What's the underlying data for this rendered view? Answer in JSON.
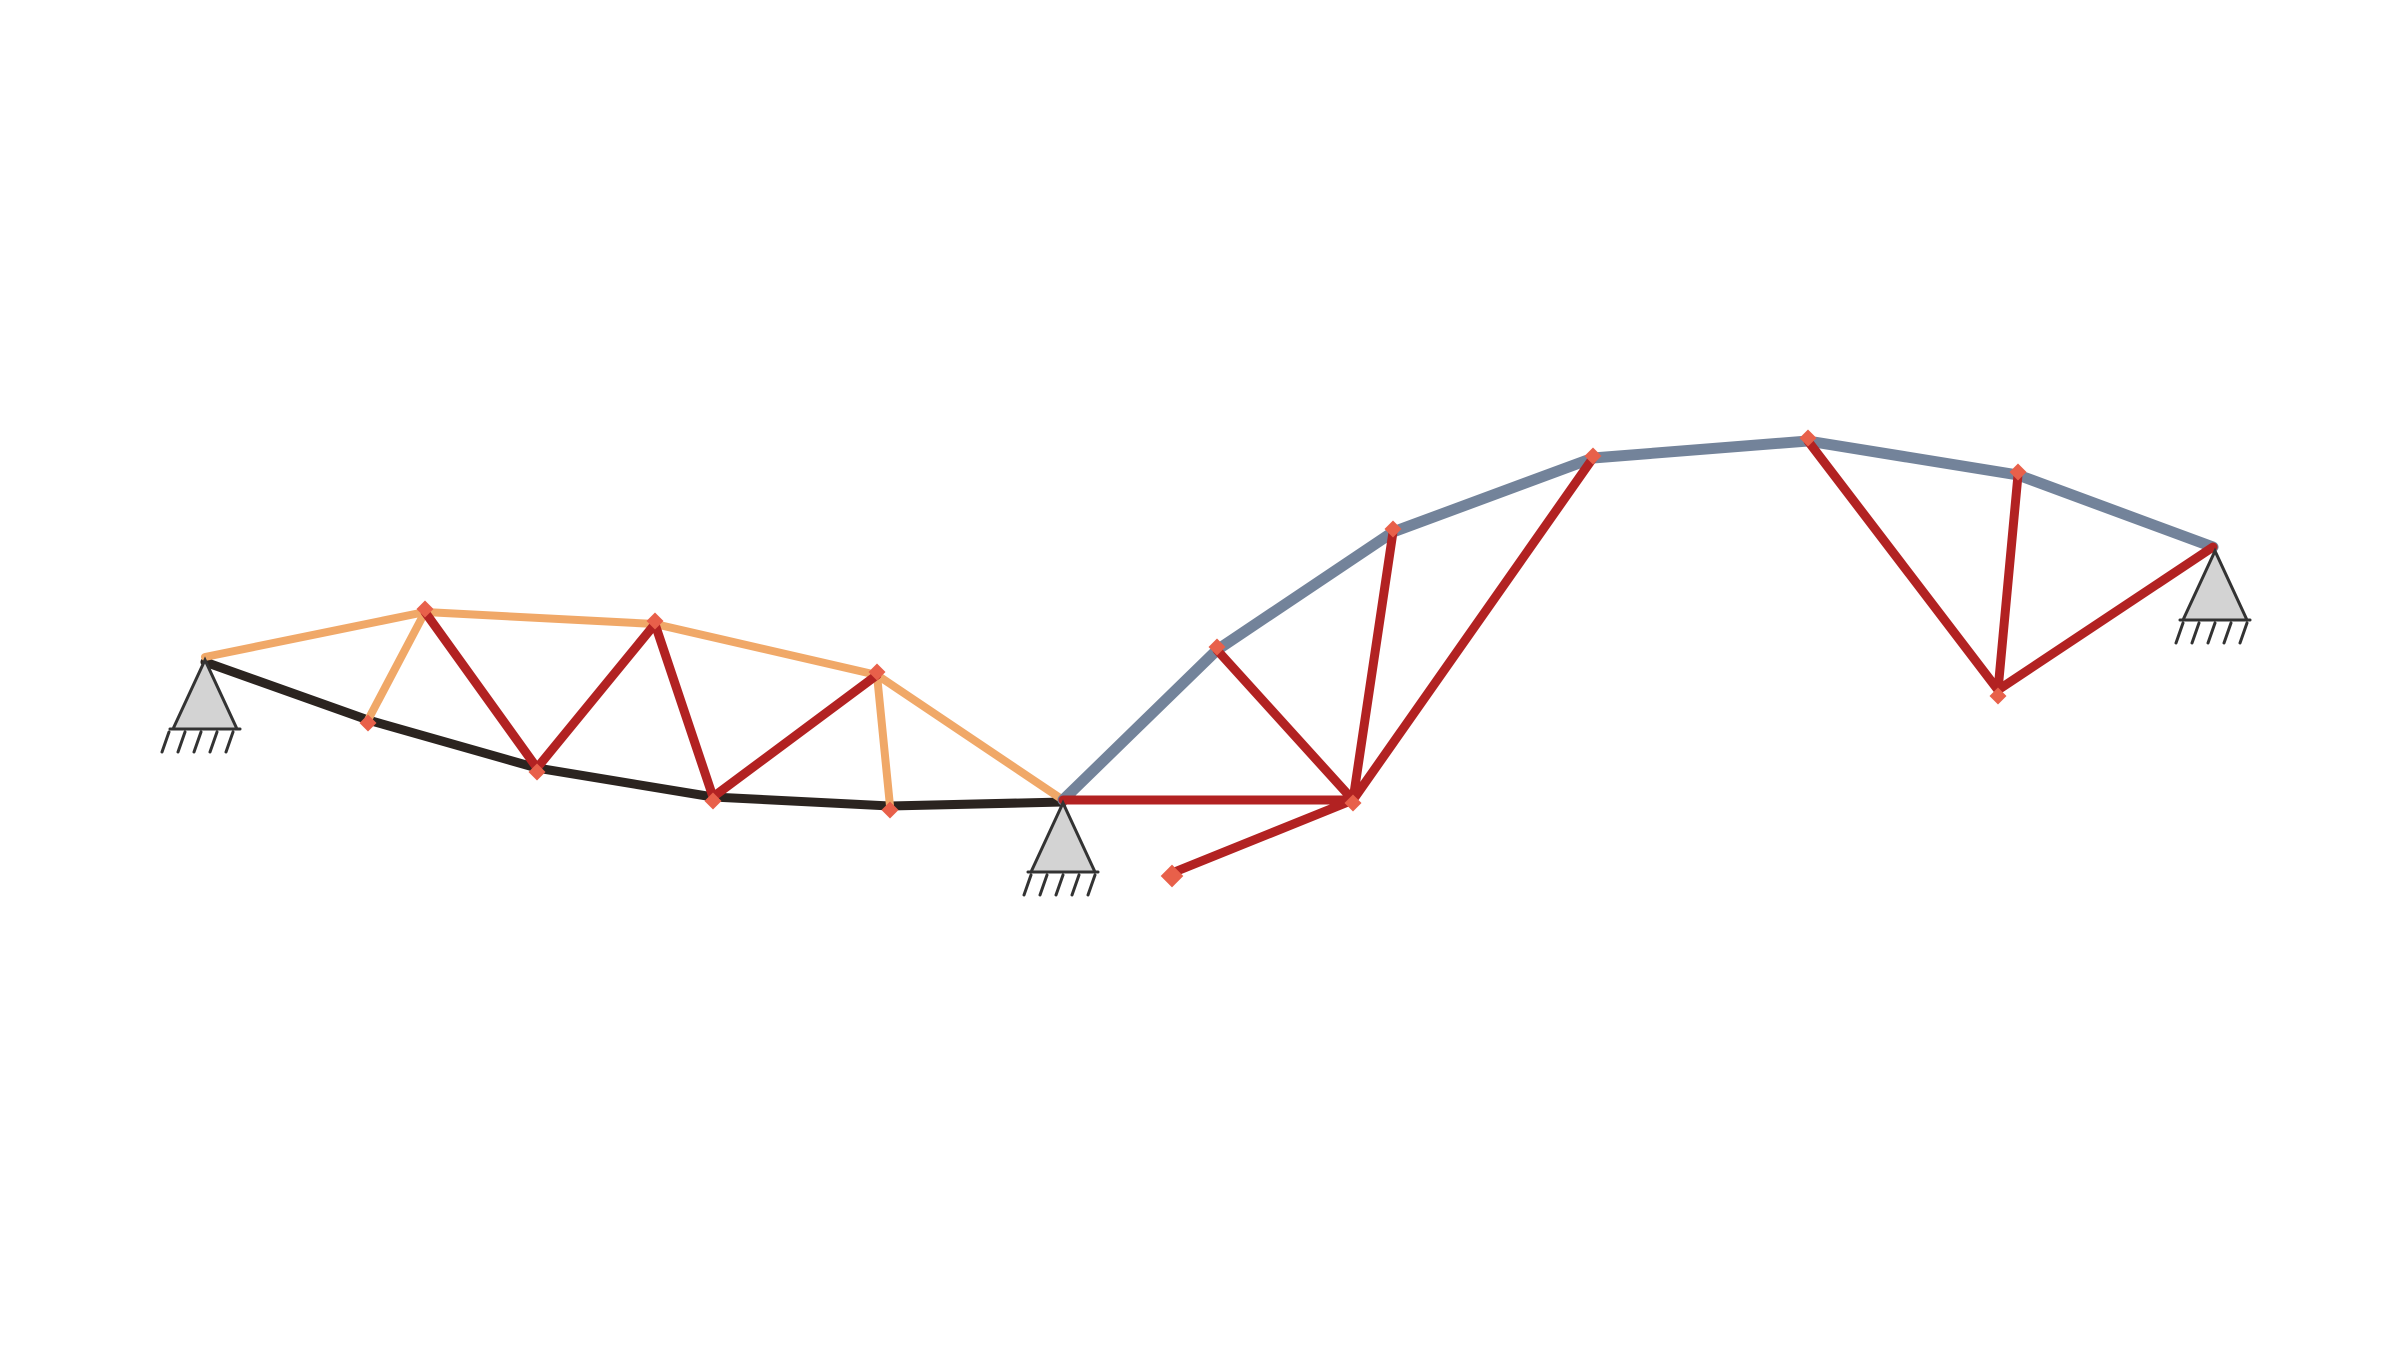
{
  "colors": {
    "background": "#ffffff",
    "bottom_chord_left": "#2b2420",
    "top_chord_left": "#f0a868",
    "top_chord_right": "#73839a",
    "web_members": "#b22222",
    "joint_markers": "#e8604a",
    "support_fill": "#d3d3d3",
    "support_stroke": "#333333"
  },
  "diagram": {
    "supports": [
      "pinned-support-left",
      "pinned-support-middle",
      "pinned-support-right"
    ],
    "groups": [
      "left-bottom-chord",
      "left-top-chord",
      "right-top-chord",
      "web-members"
    ]
  }
}
